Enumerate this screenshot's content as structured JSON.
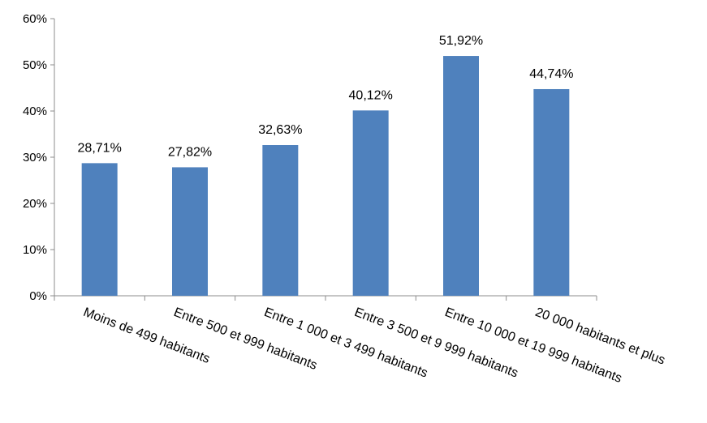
{
  "chart_data": {
    "type": "bar",
    "title": "",
    "xlabel": "",
    "ylabel": "",
    "categories": [
      "Moins de 499 habitants",
      "Entre 500 et 999 habitants",
      "Entre 1 000 et 3 499 habitants",
      "Entre 3 500 et 9 999 habitants",
      "Entre 10 000 et 19 999 habitants",
      "20 000 habitants et plus"
    ],
    "values": [
      28.71,
      27.82,
      32.63,
      40.12,
      51.92,
      44.74
    ],
    "value_labels": [
      "28,71%",
      "27,82%",
      "32,63%",
      "40,12%",
      "51,92%",
      "44,74%"
    ],
    "ylim": [
      0,
      60
    ],
    "y_ticks": [
      0,
      10,
      20,
      30,
      40,
      50,
      60
    ],
    "y_tick_labels": [
      "0%",
      "10%",
      "20%",
      "30%",
      "40%",
      "50%",
      "60%"
    ],
    "grid": false,
    "legend": "none",
    "bar_color": "#4F81BD"
  }
}
